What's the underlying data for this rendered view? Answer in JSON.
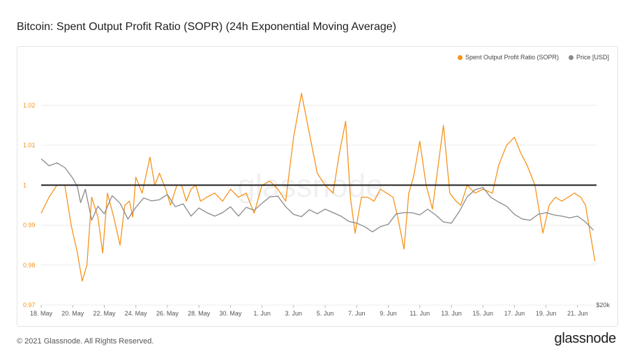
{
  "title": "Bitcoin: Spent Output Profit Ratio (SOPR) (24h Exponential Moving Average)",
  "footer": "© 2021 Glassnode. All Rights Reserved.",
  "brand": "glassnode",
  "watermark": "glassnode",
  "colors": {
    "sopr": "#f7931a",
    "price": "#8a8a8a",
    "baseline": "#222222",
    "grid": "#ececec"
  },
  "chart_data": {
    "type": "line",
    "title": "Bitcoin: Spent Output Profit Ratio (SOPR) (24h Exponential Moving Average)",
    "legend": [
      "Spent Output Profit Ratio (SOPR)",
      "Price [USD]"
    ],
    "legend_placement": "top-right",
    "grid": true,
    "x_ticks": [
      "18. May",
      "20. May",
      "22. May",
      "24. May",
      "26. May",
      "28. May",
      "30. May",
      "1. Jun",
      "3. Jun",
      "5. Jun",
      "7. Jun",
      "9. Jun",
      "11. Jun",
      "13. Jun",
      "15. Jun",
      "17. Jun",
      "19. Jun",
      "21. Jun"
    ],
    "x_range": [
      0,
      35.2
    ],
    "y_left": {
      "label": "",
      "ticks": [
        0.97,
        0.98,
        0.99,
        1,
        1.01,
        1.02
      ],
      "tick_labels": [
        "0.97",
        "0.98",
        "0.99",
        "1",
        "1.01",
        "1.02"
      ],
      "range": [
        0.97,
        1.0315
      ]
    },
    "y_right": {
      "label": "",
      "ticks": [
        20000
      ],
      "tick_labels": [
        "$20k"
      ],
      "range": [
        20000,
        62000
      ]
    },
    "reference_line": 1,
    "series": [
      {
        "name": "Spent Output Profit Ratio (SOPR)",
        "axis": "left",
        "x": [
          0,
          0.5,
          1,
          1.5,
          1.9,
          2.3,
          2.6,
          2.9,
          3.2,
          3.6,
          3.9,
          4.2,
          4.6,
          5,
          5.3,
          5.6,
          5.8,
          6,
          6.4,
          6.9,
          7.2,
          7.5,
          7.9,
          8.2,
          8.6,
          8.9,
          9.2,
          9.5,
          9.8,
          10.1,
          10.5,
          11,
          11.5,
          12,
          12.5,
          13,
          13.5,
          14,
          14.5,
          15,
          15.5,
          16,
          16.5,
          17,
          17.5,
          18,
          18.5,
          18.9,
          19.3,
          19.6,
          19.9,
          20.3,
          20.7,
          21.1,
          21.5,
          21.9,
          22.3,
          22.6,
          23,
          23.3,
          23.6,
          24,
          24.4,
          24.8,
          25.1,
          25.5,
          25.9,
          26.3,
          26.6,
          27,
          27.5,
          28,
          28.6,
          29,
          29.5,
          30,
          30.4,
          30.8,
          31.3,
          31.8,
          32.2,
          32.6,
          33,
          33.4,
          33.8,
          34.2,
          34.5,
          34.8,
          35.1
        ],
        "y": [
          0.993,
          0.997,
          1.0,
          1.0,
          0.99,
          0.983,
          0.976,
          0.98,
          0.997,
          0.992,
          0.983,
          0.998,
          0.992,
          0.985,
          0.995,
          0.996,
          0.992,
          1.002,
          0.998,
          1.007,
          1.0,
          1.003,
          0.999,
          0.995,
          1.0,
          1.0,
          0.996,
          0.999,
          1.0,
          0.996,
          0.997,
          0.998,
          0.996,
          0.999,
          0.997,
          0.998,
          0.993,
          1.0,
          1.001,
          0.999,
          0.996,
          1.012,
          1.023,
          1.013,
          1.003,
          1.0,
          0.998,
          1.008,
          1.016,
          0.997,
          0.988,
          0.997,
          0.997,
          0.996,
          0.999,
          0.998,
          0.997,
          0.992,
          0.984,
          0.998,
          1.002,
          1.011,
          1.0,
          0.994,
          1.003,
          1.015,
          0.998,
          0.996,
          0.995,
          1.0,
          0.998,
          0.999,
          0.998,
          1.005,
          1.01,
          1.012,
          1.008,
          1.005,
          1.0,
          0.988,
          0.995,
          0.997,
          0.996,
          0.997,
          0.998,
          0.997,
          0.995,
          0.988,
          0.981
        ]
      },
      {
        "name": "Price [USD]",
        "axis": "right",
        "x": [
          0,
          0.5,
          1,
          1.5,
          2,
          2.3,
          2.5,
          2.8,
          3.2,
          3.6,
          4,
          4.5,
          5,
          5.5,
          6,
          6.5,
          7,
          7.5,
          8,
          8.5,
          9,
          9.5,
          10,
          10.5,
          11,
          11.5,
          12,
          12.5,
          13,
          13.5,
          14,
          14.5,
          15,
          15.5,
          16,
          16.5,
          17,
          17.5,
          18,
          18.5,
          19,
          19.5,
          20,
          20.5,
          21,
          21.5,
          22,
          22.5,
          23,
          23.5,
          24,
          24.5,
          25,
          25.5,
          26,
          26.5,
          27,
          27.5,
          28,
          28.5,
          29,
          29.5,
          30,
          30.5,
          31,
          31.5,
          32,
          32.5,
          33,
          33.5,
          34,
          34.5,
          35
        ],
        "y": [
          45000,
          43800,
          44300,
          43500,
          41700,
          40200,
          37500,
          39800,
          34500,
          36900,
          35600,
          38700,
          37400,
          34700,
          36700,
          38300,
          37800,
          38000,
          38900,
          36800,
          37300,
          35200,
          36600,
          35800,
          35200,
          35800,
          36800,
          35200,
          36700,
          36200,
          37400,
          38500,
          38600,
          36800,
          35500,
          35100,
          36300,
          35600,
          36400,
          35800,
          35200,
          34300,
          34000,
          33400,
          32500,
          33400,
          33800,
          35600,
          35800,
          35800,
          35400,
          36400,
          35400,
          34200,
          34000,
          36000,
          38500,
          39700,
          40100,
          38400,
          37600,
          36900,
          35500,
          34700,
          34500,
          35500,
          35800,
          35400,
          35200,
          34900,
          35200,
          34200,
          32800
        ]
      }
    ]
  }
}
